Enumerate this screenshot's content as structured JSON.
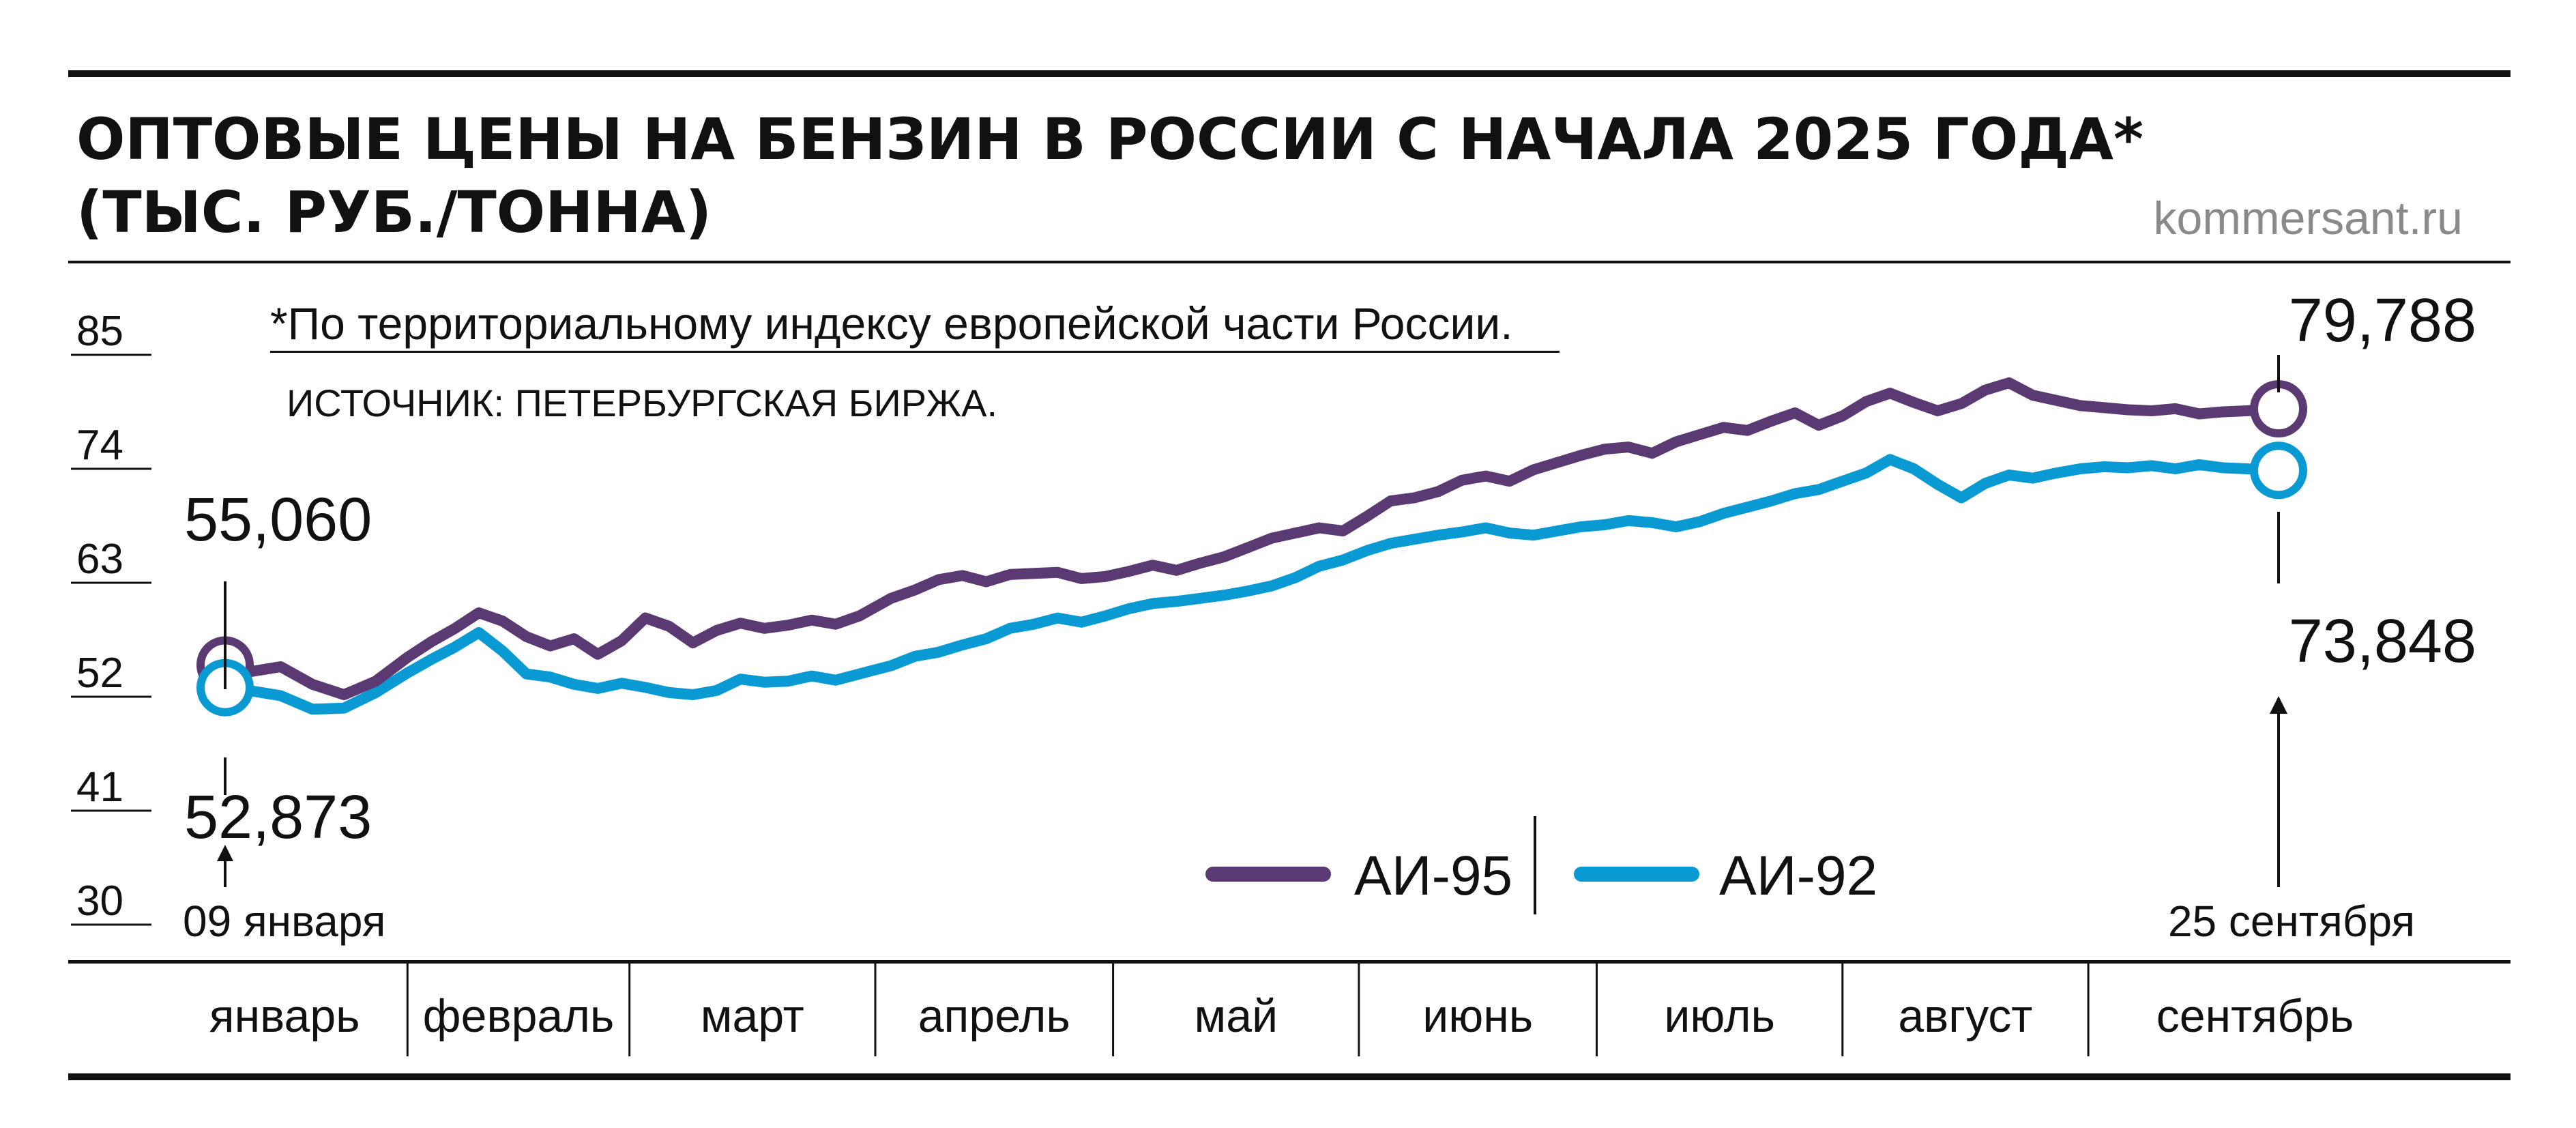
{
  "header": {
    "title_line1": "ОПТОВЫЕ ЦЕНЫ НА БЕНЗИН В РОССИИ С НАЧАЛА 2025 ГОДА*",
    "title_line2": "(ТЫС. РУБ./ТОННА)",
    "site": "kommersant.ru"
  },
  "notes": {
    "footnote": "*По территориальному индексу европейской части России.",
    "source": "ИСТОЧНИК: ПЕТЕРБУРГСКАЯ БИРЖА."
  },
  "colors": {
    "ai95": "#5b3a74",
    "ai92": "#0a9ad3",
    "rule": "#111111"
  },
  "chart_data": {
    "type": "line",
    "title": "ОПТОВЫЕ ЦЕНЫ НА БЕНЗИН В РОССИИ С НАЧАЛА 2025 ГОДА* (ТЫС. РУБ./ТОННА)",
    "ylim": [
      30,
      85
    ],
    "yticks": [
      85,
      74,
      63,
      52,
      41,
      30
    ],
    "ytick_labels": [
      "85",
      "74",
      "63",
      "52",
      "41",
      "30"
    ],
    "grid": false,
    "legend_position": "bottom-right",
    "months": [
      "январь",
      "февраль",
      "март",
      "апрель",
      "май",
      "июнь",
      "июль",
      "август",
      "сентябрь"
    ],
    "x_start_label": "09 января",
    "x_end_label": "25 сентября",
    "x": [
      "2025-01-09",
      "2025-01-12",
      "2025-01-16",
      "2025-01-20",
      "2025-01-24",
      "2025-01-28",
      "2025-02-01",
      "2025-02-04",
      "2025-02-07",
      "2025-02-10",
      "2025-02-13",
      "2025-02-16",
      "2025-02-19",
      "2025-02-22",
      "2025-02-25",
      "2025-02-28",
      "2025-03-03",
      "2025-03-06",
      "2025-03-09",
      "2025-03-12",
      "2025-03-15",
      "2025-03-18",
      "2025-03-21",
      "2025-03-24",
      "2025-03-27",
      "2025-03-30",
      "2025-04-03",
      "2025-04-06",
      "2025-04-09",
      "2025-04-12",
      "2025-04-15",
      "2025-04-18",
      "2025-04-21",
      "2025-04-24",
      "2025-04-27",
      "2025-04-30",
      "2025-05-03",
      "2025-05-06",
      "2025-05-09",
      "2025-05-12",
      "2025-05-15",
      "2025-05-18",
      "2025-05-21",
      "2025-05-24",
      "2025-05-27",
      "2025-05-30",
      "2025-06-02",
      "2025-06-05",
      "2025-06-08",
      "2025-06-11",
      "2025-06-14",
      "2025-06-17",
      "2025-06-20",
      "2025-06-23",
      "2025-06-26",
      "2025-06-29",
      "2025-07-02",
      "2025-07-05",
      "2025-07-08",
      "2025-07-11",
      "2025-07-14",
      "2025-07-17",
      "2025-07-20",
      "2025-07-23",
      "2025-07-26",
      "2025-07-29",
      "2025-08-01",
      "2025-08-04",
      "2025-08-07",
      "2025-08-10",
      "2025-08-13",
      "2025-08-16",
      "2025-08-19",
      "2025-08-22",
      "2025-08-25",
      "2025-08-28",
      "2025-08-31",
      "2025-09-03",
      "2025-09-06",
      "2025-09-09",
      "2025-09-12",
      "2025-09-15",
      "2025-09-18",
      "2025-09-21",
      "2025-09-25"
    ],
    "series": [
      {
        "name": "АИ-95",
        "color": "#5b3a74",
        "start_value": "55,060",
        "end_value": "79,788",
        "values": [
          55.06,
          54.4,
          54.9,
          53.2,
          52.2,
          53.5,
          55.8,
          57.3,
          58.6,
          60.1,
          59.3,
          57.8,
          56.9,
          57.6,
          56.1,
          57.4,
          59.6,
          58.8,
          57.2,
          58.4,
          59.1,
          58.6,
          58.9,
          59.4,
          59.0,
          59.8,
          61.5,
          62.3,
          63.3,
          63.7,
          63.1,
          63.8,
          63.9,
          64.0,
          63.4,
          63.6,
          64.1,
          64.7,
          64.2,
          64.9,
          65.5,
          66.4,
          67.3,
          67.8,
          68.3,
          68.0,
          69.4,
          70.9,
          71.2,
          71.8,
          72.9,
          73.3,
          72.8,
          73.9,
          74.6,
          75.3,
          75.9,
          76.1,
          75.5,
          76.6,
          77.3,
          78.0,
          77.7,
          78.6,
          79.4,
          78.2,
          79.1,
          80.5,
          81.3,
          80.4,
          79.6,
          80.3,
          81.6,
          82.3,
          81.1,
          80.6,
          80.1,
          79.9,
          79.7,
          79.6,
          79.8,
          79.3,
          79.5,
          79.6,
          79.788
        ]
      },
      {
        "name": "АИ-92",
        "color": "#0a9ad3",
        "start_value": "52,873",
        "end_value": "73,848",
        "values": [
          52.873,
          52.6,
          52.1,
          50.8,
          50.9,
          52.4,
          54.3,
          55.6,
          56.8,
          58.2,
          56.4,
          54.2,
          53.9,
          53.2,
          52.8,
          53.3,
          52.9,
          52.4,
          52.2,
          52.6,
          53.7,
          53.4,
          53.5,
          54.0,
          53.6,
          54.2,
          55.0,
          55.9,
          56.3,
          57.0,
          57.6,
          58.6,
          59.0,
          59.6,
          59.2,
          59.8,
          60.5,
          61.0,
          61.2,
          61.5,
          61.8,
          62.2,
          62.7,
          63.5,
          64.6,
          65.2,
          66.1,
          66.8,
          67.2,
          67.6,
          67.9,
          68.3,
          67.8,
          67.6,
          68.0,
          68.4,
          68.6,
          69.0,
          68.8,
          68.4,
          68.9,
          69.7,
          70.3,
          70.9,
          71.6,
          72.0,
          72.8,
          73.6,
          74.9,
          74.0,
          72.5,
          71.2,
          72.6,
          73.4,
          73.1,
          73.6,
          74.0,
          74.2,
          74.1,
          74.3,
          74.0,
          74.4,
          74.1,
          74.0,
          73.848
        ]
      }
    ]
  }
}
